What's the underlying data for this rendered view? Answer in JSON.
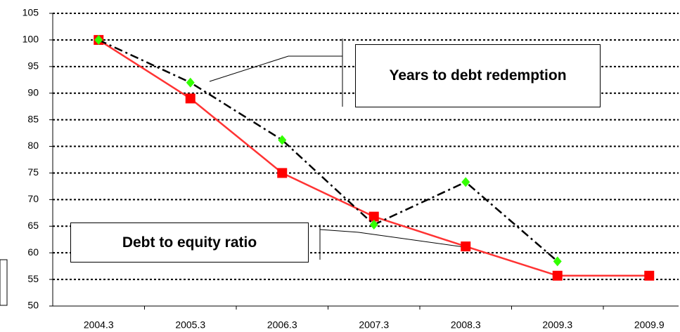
{
  "chart_data": {
    "type": "line",
    "categories": [
      "2004.3",
      "2005.3",
      "2006.3",
      "2007.3",
      "2008.3",
      "2009.3",
      "2009.9"
    ],
    "series": [
      {
        "name": "Debt to equity ratio",
        "color": "#ff3333",
        "marker_color": "#ff0000",
        "values": [
          100,
          89,
          75,
          66.8,
          61.2,
          55.7,
          55.7
        ]
      },
      {
        "name": "Years to debt redemption",
        "color": "#000000",
        "marker_color": "#33ff00",
        "values": [
          100,
          92,
          81.2,
          65.3,
          73.3,
          58.4,
          null
        ]
      }
    ],
    "ylim": [
      50,
      105
    ],
    "yticks": [
      50,
      55,
      60,
      65,
      70,
      75,
      80,
      85,
      90,
      95,
      100,
      105
    ],
    "grid": true
  }
}
